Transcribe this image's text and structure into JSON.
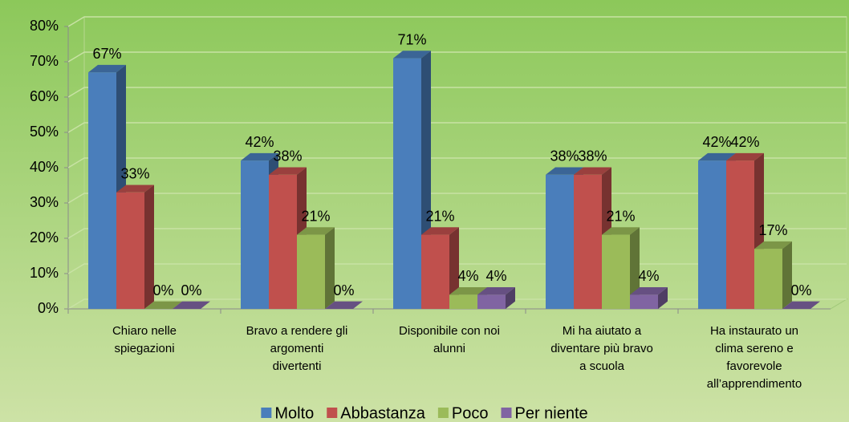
{
  "chart_data": {
    "type": "bar3d",
    "categories": [
      "Chiaro nelle spiegazioni",
      "Bravo a rendere gli argomenti divertenti",
      "Disponibile con noi alunni",
      "Mi ha aiutato a diventare più bravo a scuola",
      "Ha instaurato un clima sereno e favorevole all’apprendimento"
    ],
    "series": [
      {
        "name": "Molto",
        "color": "#4a7ebb",
        "values": [
          67,
          42,
          71,
          38,
          42
        ],
        "value_labels": [
          "67%",
          "42%",
          "71%",
          "38%",
          "42%"
        ]
      },
      {
        "name": "Abbastanza",
        "color": "#c0504d",
        "values": [
          33,
          38,
          21,
          38,
          42
        ],
        "value_labels": [
          "33%",
          "38%",
          "21%",
          "38%",
          "42%"
        ]
      },
      {
        "name": "Poco",
        "color": "#9bbb59",
        "values": [
          0,
          21,
          4,
          21,
          17
        ],
        "value_labels": [
          "0%",
          "21%",
          "4%",
          "21%",
          "17%"
        ]
      },
      {
        "name": "Per niente",
        "color": "#8064a2",
        "values": [
          0,
          0,
          4,
          4,
          0
        ],
        "value_labels": [
          "0%",
          "0%",
          "4%",
          "4%",
          "0%"
        ]
      }
    ],
    "ylim": [
      0,
      80
    ],
    "yticks": [
      {
        "value": 0,
        "label": "0%"
      },
      {
        "value": 10,
        "label": "10%"
      },
      {
        "value": 20,
        "label": "20%"
      },
      {
        "value": 30,
        "label": "30%"
      },
      {
        "value": 40,
        "label": "40%"
      },
      {
        "value": 50,
        "label": "50%"
      },
      {
        "value": 60,
        "label": "60%"
      },
      {
        "value": 70,
        "label": "70%"
      },
      {
        "value": 80,
        "label": "80%"
      }
    ],
    "grid": true,
    "legend": "bottom"
  }
}
